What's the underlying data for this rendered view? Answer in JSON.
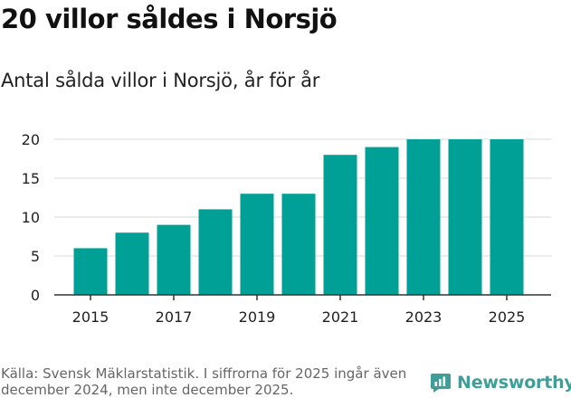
{
  "title": "20 villor såldes i Norsjö",
  "subtitle": "Antal sålda villor i Norsjö, år för år",
  "source": "Källa: Svensk Mäklarstatistik. I siffrorna för 2025 ingår även december 2024, men inte december 2025.",
  "brand": {
    "name": "Newsworthy",
    "icon": "newsworthy-logo-icon"
  },
  "colors": {
    "bar": "#00a096",
    "grid": "#d9d9d9",
    "axis": "#333333",
    "brand": "#3f9e97"
  },
  "chart_data": {
    "type": "bar",
    "title": "Antal sålda villor i Norsjö, år för år",
    "xlabel": "",
    "ylabel": "",
    "categories": [
      "2015",
      "2016",
      "2017",
      "2018",
      "2019",
      "2020",
      "2021",
      "2022",
      "2023",
      "2024",
      "2025"
    ],
    "values": [
      6,
      8,
      9,
      11,
      13,
      13,
      18,
      19,
      20,
      20,
      20
    ],
    "x_tick_labels": [
      "2015",
      "2017",
      "2019",
      "2021",
      "2023",
      "2025"
    ],
    "y_ticks": [
      0,
      5,
      10,
      15,
      20
    ],
    "ylim": [
      0,
      20
    ],
    "grid": true
  }
}
